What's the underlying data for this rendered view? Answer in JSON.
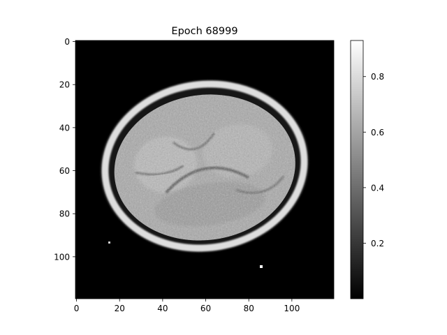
{
  "chart_data": {
    "type": "heatmap",
    "title": "Epoch 68999",
    "colormap": "gray",
    "image_size": [
      120,
      120
    ],
    "xlabel": "",
    "ylabel": "",
    "xlim": [
      -0.5,
      119.5
    ],
    "ylim": [
      119.5,
      -0.5
    ],
    "x_ticks": [
      0,
      20,
      40,
      60,
      80,
      100
    ],
    "x_tick_labels": [
      "0",
      "20",
      "40",
      "60",
      "80",
      "100"
    ],
    "y_ticks": [
      0,
      20,
      40,
      60,
      80,
      100
    ],
    "y_tick_labels": [
      "0",
      "20",
      "40",
      "60",
      "80",
      "100"
    ],
    "colorbar": {
      "range": [
        0.0,
        0.93
      ],
      "ticks": [
        0.2,
        0.4,
        0.6,
        0.8
      ],
      "tick_labels": [
        "0.2",
        "0.4",
        "0.6",
        "0.8"
      ]
    },
    "content": "axial brain MRI slice, bright skull ring and textured gray brain tissue on black background"
  }
}
